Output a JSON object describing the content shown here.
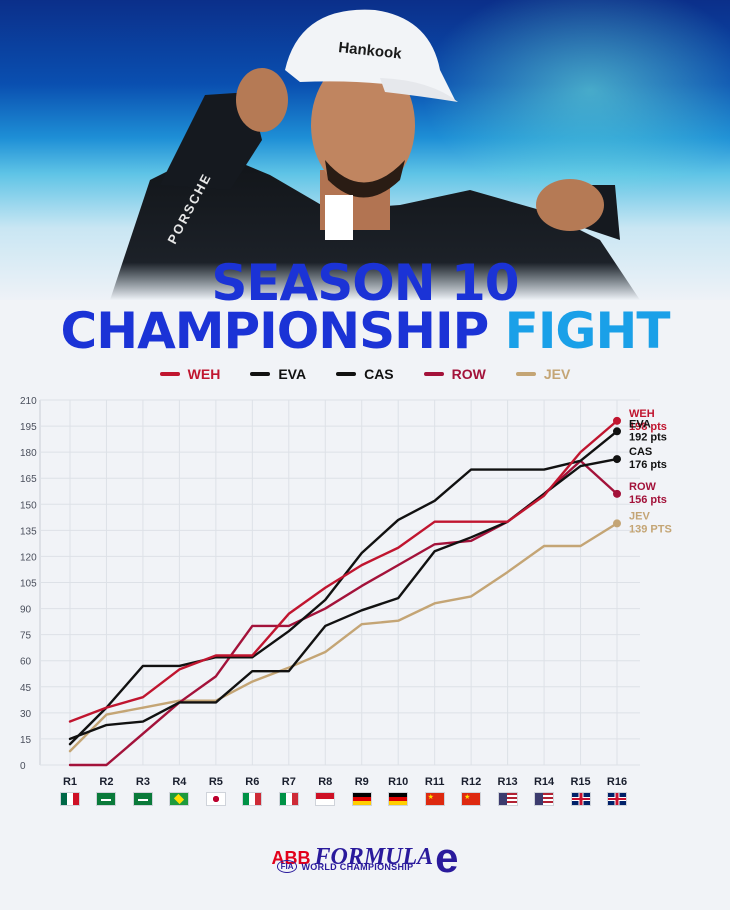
{
  "title": {
    "line1": "SEASON 10",
    "line2_main": "CHAMPIONSHIP",
    "line2_accent": "FIGHT"
  },
  "hero": {
    "cap_text": "Hankook"
  },
  "colors": {
    "title": "#1b33d6",
    "title_accent": "#1aa0e8",
    "weh": "#c0152f",
    "eva": "#111111",
    "cas": "#111111",
    "row": "#a3123a",
    "jev": "#c4a575"
  },
  "legend": [
    {
      "label": "WEH",
      "color": "#c0152f"
    },
    {
      "label": "EVA",
      "color": "#111111"
    },
    {
      "label": "CAS",
      "color": "#111111"
    },
    {
      "label": "ROW",
      "color": "#a3123a"
    },
    {
      "label": "JEV",
      "color": "#c4a575"
    }
  ],
  "chart_data": {
    "type": "line",
    "x": [
      "R1",
      "R2",
      "R3",
      "R4",
      "R5",
      "R6",
      "R7",
      "R8",
      "R9",
      "R10",
      "R11",
      "R12",
      "R13",
      "R14",
      "R15",
      "R16"
    ],
    "ylim": [
      0,
      210
    ],
    "y_ticks": [
      "0",
      "15",
      "30",
      "45",
      "60",
      "75",
      "90",
      "105",
      "120",
      "135",
      "150",
      "165",
      "180",
      "195",
      "210"
    ],
    "grid": true,
    "legend_position": "top",
    "series": [
      {
        "name": "WEH",
        "color": "#c0152f",
        "values": [
          25,
          33,
          39,
          55,
          63,
          63,
          87,
          102,
          115,
          125,
          140,
          140,
          140,
          155,
          180,
          198
        ],
        "end_label": [
          "WEH",
          "198 pts"
        ]
      },
      {
        "name": "EVA",
        "color": "#111111",
        "values": [
          12,
          33,
          57,
          57,
          62,
          62,
          77,
          95,
          122,
          141,
          152,
          170,
          170,
          170,
          175,
          192
        ],
        "end_label": [
          "EVA",
          "192 pts"
        ]
      },
      {
        "name": "CAS",
        "color": "#111111",
        "values": [
          15,
          23,
          25,
          36,
          36,
          54,
          54,
          80,
          89,
          96,
          123,
          131,
          140,
          156,
          172,
          176
        ],
        "end_label": [
          "CAS",
          "176 pts"
        ]
      },
      {
        "name": "ROW",
        "color": "#a3123a",
        "values": [
          0,
          0,
          18,
          36,
          51,
          80,
          80,
          90,
          103,
          115,
          127,
          129,
          140,
          156,
          175,
          156
        ],
        "end_label": [
          "ROW",
          "156 pts"
        ]
      },
      {
        "name": "JEV",
        "color": "#c4a575",
        "values": [
          8,
          29,
          33,
          37,
          37,
          48,
          56,
          65,
          81,
          83,
          93,
          97,
          111,
          126,
          126,
          139
        ],
        "end_label": [
          "JEV",
          "139 PTS"
        ]
      }
    ]
  },
  "flags": [
    "mexico",
    "saudi-arabia",
    "saudi-arabia",
    "brazil",
    "japan",
    "italy",
    "italy",
    "monaco",
    "germany",
    "germany",
    "china",
    "china",
    "usa",
    "usa",
    "uk",
    "uk"
  ],
  "brand": {
    "abb": "ABB",
    "formula": "FORMULA",
    "e": "e",
    "fia": "FIA",
    "championship": "WORLD CHAMPIONSHIP"
  }
}
